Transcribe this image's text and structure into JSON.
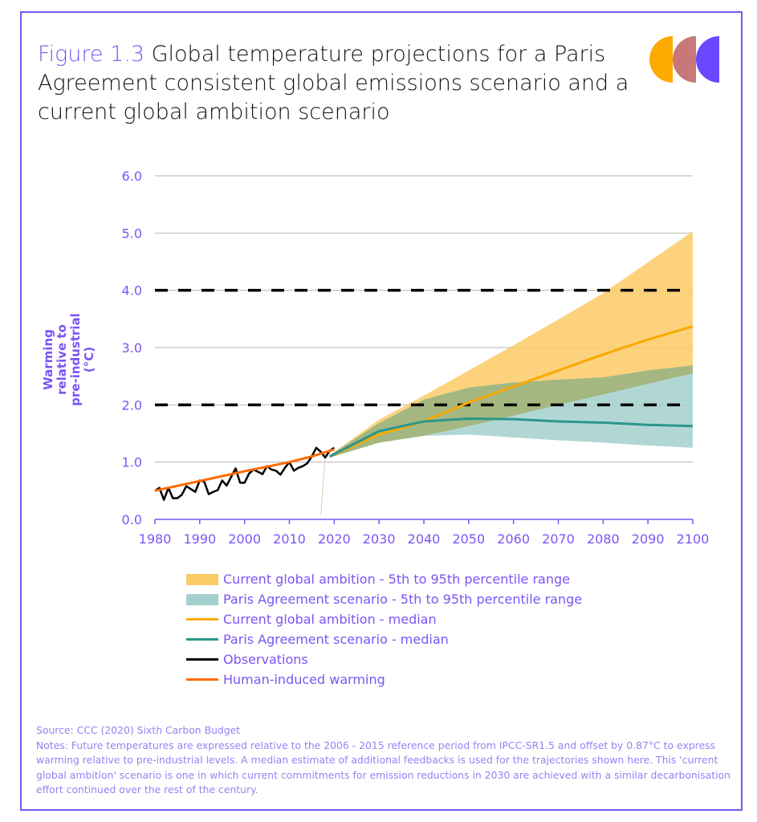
{
  "header": {
    "figure_label": "Figure 1.3",
    "title": " Global temperature projections for a Paris Agreement consistent global emissions scenario and a current global ambition scenario"
  },
  "colors": {
    "accent": "#7b55f5",
    "current_band": "#fbcb65",
    "paris_band": "#a3d0cc",
    "overlap": "#a3b47a",
    "current_median": "#f9a800",
    "paris_median": "#2b968c",
    "observations": "#000000",
    "human_induced": "#ff6a00",
    "logo": [
      "#ffaa00",
      "#c87878",
      "#6b47ff"
    ]
  },
  "chart_data": {
    "type": "line",
    "title": "Global temperature projections",
    "xlabel": "",
    "ylabel": "Warming relative to pre-industrial (°C)",
    "xlim": [
      1980,
      2100
    ],
    "ylim": [
      0,
      6
    ],
    "x_ticks": [
      "1980",
      "1990",
      "2000",
      "2010",
      "2020",
      "2030",
      "2040",
      "2050",
      "2060",
      "2070",
      "2080",
      "2090",
      "2100"
    ],
    "y_ticks": [
      "0.0",
      "1.0",
      "2.0",
      "3.0",
      "4.0",
      "5.0",
      "6.0"
    ],
    "grid": true,
    "reference_lines": [
      2.0,
      4.0
    ],
    "legend_placement": "bottom",
    "series": [
      {
        "name": "Current global ambition - 5th to 95th percentile range",
        "kind": "band",
        "x": [
          2019,
          2030,
          2040,
          2050,
          2060,
          2070,
          2080,
          2090,
          2100
        ],
        "lower": [
          1.08,
          1.34,
          1.46,
          1.63,
          1.81,
          2.0,
          2.18,
          2.37,
          2.55
        ],
        "upper": [
          1.12,
          1.74,
          2.16,
          2.6,
          3.04,
          3.49,
          3.95,
          4.49,
          5.03
        ]
      },
      {
        "name": "Paris Agreement scenario - 5th to 95th percentile range",
        "kind": "band",
        "x": [
          2019,
          2030,
          2040,
          2050,
          2060,
          2070,
          2080,
          2090,
          2100
        ],
        "lower": [
          1.08,
          1.34,
          1.46,
          1.48,
          1.43,
          1.38,
          1.34,
          1.29,
          1.25
        ],
        "upper": [
          1.12,
          1.68,
          2.09,
          2.3,
          2.39,
          2.44,
          2.48,
          2.6,
          2.69
        ]
      },
      {
        "name": "Current global ambition - median",
        "kind": "line",
        "x": [
          2019,
          2030,
          2040,
          2050,
          2060,
          2070,
          2080,
          2090,
          2100
        ],
        "y": [
          1.1,
          1.48,
          1.71,
          2.04,
          2.32,
          2.6,
          2.88,
          3.14,
          3.37
        ]
      },
      {
        "name": "Paris Agreement scenario - median",
        "kind": "line",
        "x": [
          2019,
          2030,
          2040,
          2050,
          2060,
          2070,
          2080,
          2090,
          2100
        ],
        "y": [
          1.1,
          1.54,
          1.71,
          1.76,
          1.75,
          1.71,
          1.69,
          1.65,
          1.63
        ]
      },
      {
        "name": "Observations",
        "kind": "line",
        "x": [
          1980,
          1981,
          1982,
          1983,
          1984,
          1985,
          1986,
          1987,
          1988,
          1989,
          1990,
          1991,
          1992,
          1993,
          1994,
          1995,
          1996,
          1997,
          1998,
          1999,
          2000,
          2001,
          2002,
          2003,
          2004,
          2005,
          2006,
          2007,
          2008,
          2009,
          2010,
          2011,
          2012,
          2013,
          2014,
          2015,
          2016,
          2017,
          2018,
          2019,
          2020
        ],
        "y": [
          0.5,
          0.55,
          0.34,
          0.55,
          0.37,
          0.37,
          0.43,
          0.58,
          0.53,
          0.48,
          0.68,
          0.66,
          0.44,
          0.48,
          0.51,
          0.68,
          0.59,
          0.74,
          0.89,
          0.64,
          0.64,
          0.8,
          0.87,
          0.83,
          0.79,
          0.93,
          0.87,
          0.85,
          0.78,
          0.9,
          1.0,
          0.85,
          0.9,
          0.93,
          0.98,
          1.1,
          1.25,
          1.18,
          1.08,
          1.2,
          1.25
        ]
      },
      {
        "name": "Human-induced warming",
        "kind": "line",
        "x": [
          1980,
          1990,
          2000,
          2010,
          2015,
          2020
        ],
        "y": [
          0.5,
          0.67,
          0.84,
          1.0,
          1.1,
          1.22
        ]
      }
    ]
  },
  "axis": {
    "ylabel_line1": "Warming relative to",
    "ylabel_line2": "pre-industrial (°C)"
  },
  "legend": [
    {
      "label": "Current global ambition - 5th to 95th percentile range"
    },
    {
      "label": "Paris Agreement scenario - 5th to 95th percentile range"
    },
    {
      "label": "Current global ambition - median"
    },
    {
      "label": "Paris Agreement scenario - median"
    },
    {
      "label": "Observations"
    },
    {
      "label": "Human-induced warming"
    }
  ],
  "footer": {
    "source": "Source: CCC (2020) Sixth Carbon Budget",
    "notes": "Notes:  Future temperatures are expressed relative to the 2006 - 2015 reference period from IPCC-SR1.5 and offset by 0.87°C to express warming relative to pre-industrial levels. A median estimate of additional feedbacks is used for the trajectories shown here. This 'current global ambition' scenario is one in which current commitments for emission reductions in 2030 are achieved with a similar decarbonisation effort continued over the rest of the century."
  }
}
